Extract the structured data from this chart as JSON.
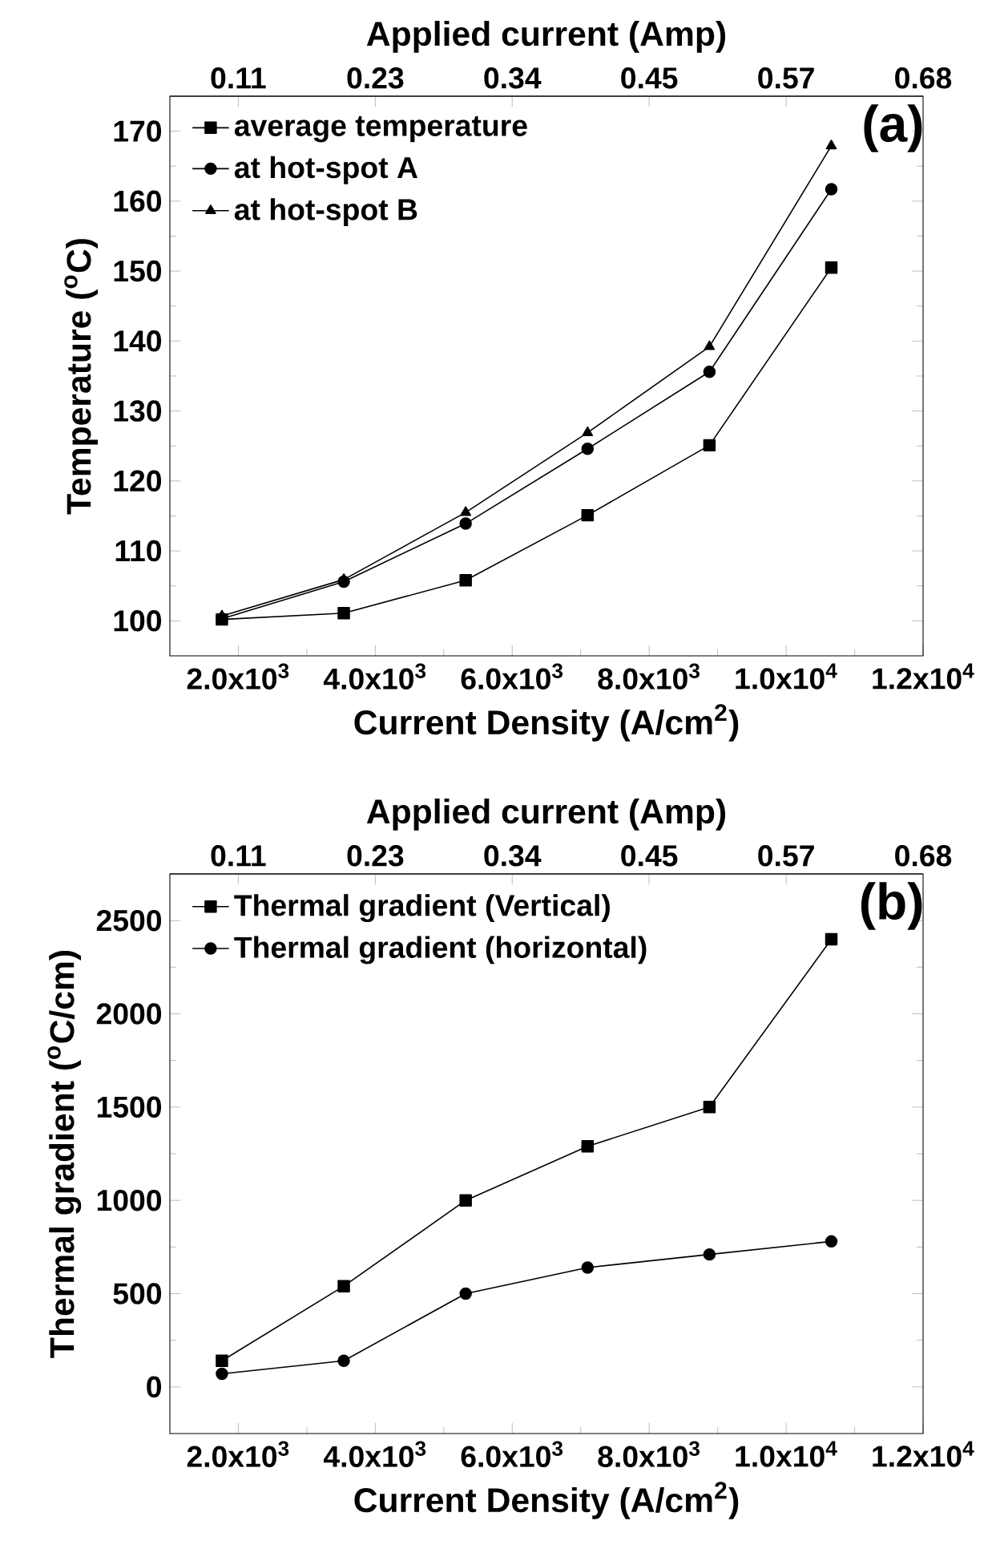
{
  "chart_data": [
    {
      "type": "line",
      "xlabel": "Current Density (A/cm$^{2}$)",
      "ylabel": "Temperature ($^{o}$C)",
      "x2label": "Applied current (Amp)",
      "line_style": "solid",
      "legend": "top left",
      "annotations": [
        "(a)"
      ],
      "x": [
        1760,
        3540,
        5320,
        7100,
        8880,
        10660
      ],
      "xlim": [
        1000,
        12000
      ],
      "xticks": [
        {
          "value": 2000,
          "label": "2.0x10$^{3}$"
        },
        {
          "value": 4000,
          "label": "4.0x10$^{3}$"
        },
        {
          "value": 6000,
          "label": "6.0x10$^{3}$"
        },
        {
          "value": 8000,
          "label": "8.0x10$^{3}$"
        },
        {
          "value": 10000,
          "label": "1.0x10$^{4}$"
        },
        {
          "value": 12000,
          "label": "1.2x10$^{4}$"
        }
      ],
      "x2lim": [
        0.0567,
        0.68
      ],
      "x2ticks": [
        {
          "value": 0.1133,
          "label": "0.11"
        },
        {
          "value": 0.2267,
          "label": "0.23"
        },
        {
          "value": 0.34,
          "label": "0.34"
        },
        {
          "value": 0.4533,
          "label": "0.45"
        },
        {
          "value": 0.5667,
          "label": "0.57"
        },
        {
          "value": 0.68,
          "label": "0.68"
        }
      ],
      "ylim": [
        95,
        175
      ],
      "yticks": [
        100,
        110,
        120,
        130,
        140,
        150,
        160,
        170
      ],
      "series": [
        {
          "name": "average temperature",
          "color": "#000000",
          "marker": "square",
          "values": [
            100.2,
            101.1,
            105.8,
            115.1,
            125.1,
            150.5
          ]
        },
        {
          "name": "at hot-spot A",
          "color": "#000000",
          "marker": "circle",
          "values": [
            100.3,
            105.6,
            113.9,
            124.6,
            135.6,
            161.7
          ]
        },
        {
          "name": "at hot-spot B",
          "color": "#000000",
          "marker": "triangle",
          "values": [
            100.7,
            105.9,
            115.5,
            126.9,
            139.2,
            167.9
          ]
        }
      ]
    },
    {
      "type": "line",
      "xlabel": "Current Density (A/cm$^{2}$)",
      "ylabel": "Thermal gradient ($^{o}$C/cm)",
      "x2label": "Applied current (Amp)",
      "line_style": "solid",
      "legend": "top left",
      "annotations": [
        "(b)"
      ],
      "x": [
        1760,
        3540,
        5320,
        7100,
        8880,
        10660
      ],
      "xlim": [
        1000,
        12000
      ],
      "xticks": [
        {
          "value": 2000,
          "label": "2.0x10$^{3}$"
        },
        {
          "value": 4000,
          "label": "4.0x10$^{3}$"
        },
        {
          "value": 6000,
          "label": "6.0x10$^{3}$"
        },
        {
          "value": 8000,
          "label": "8.0x10$^{3}$"
        },
        {
          "value": 10000,
          "label": "1.0x10$^{4}$"
        },
        {
          "value": 12000,
          "label": "1.2x10$^{4}$"
        }
      ],
      "x2lim": [
        0.0567,
        0.68
      ],
      "x2ticks": [
        {
          "value": 0.1133,
          "label": "0.11"
        },
        {
          "value": 0.2267,
          "label": "0.23"
        },
        {
          "value": 0.34,
          "label": "0.34"
        },
        {
          "value": 0.4533,
          "label": "0.45"
        },
        {
          "value": 0.5667,
          "label": "0.57"
        },
        {
          "value": 0.68,
          "label": "0.68"
        }
      ],
      "ylim": [
        -250,
        2750
      ],
      "yticks": [
        0,
        500,
        1000,
        1500,
        2000,
        2500
      ],
      "series": [
        {
          "name": "Thermal gradient (Vertical)",
          "color": "#000000",
          "marker": "square",
          "values": [
            140,
            540,
            1000,
            1290,
            1500,
            2400
          ]
        },
        {
          "name": "Thermal gradient (horizontal)",
          "color": "#000000",
          "marker": "circle",
          "values": [
            70,
            140,
            500,
            640,
            710,
            780
          ]
        }
      ]
    }
  ]
}
